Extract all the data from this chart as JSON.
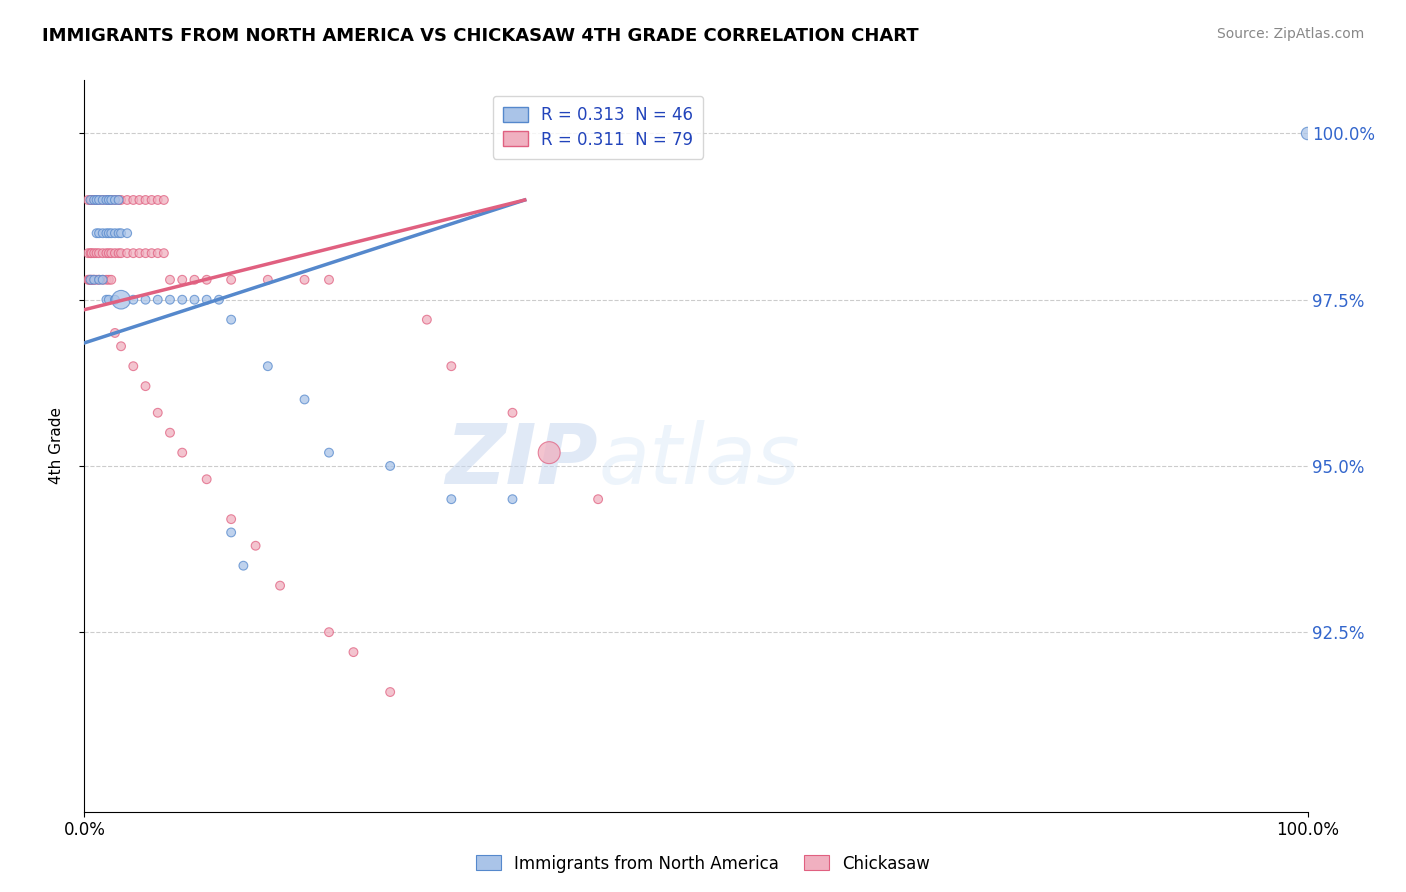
{
  "title": "IMMIGRANTS FROM NORTH AMERICA VS CHICKASAW 4TH GRADE CORRELATION CHART",
  "source_text": "Source: ZipAtlas.com",
  "ylabel": "4th Grade",
  "xmin": 0.0,
  "xmax": 1.0,
  "ymin": 0.898,
  "ymax": 1.008,
  "x_tick_labels": [
    "0.0%",
    "100.0%"
  ],
  "x_tick_positions": [
    0.0,
    1.0
  ],
  "y_tick_labels": [
    "92.5%",
    "95.0%",
    "97.5%",
    "100.0%"
  ],
  "y_tick_values": [
    0.925,
    0.95,
    0.975,
    1.0
  ],
  "watermark_zip": "ZIP",
  "watermark_atlas": "atlas",
  "legend_items": [
    {
      "label": "Immigrants from North America",
      "R": "0.313",
      "N": "46"
    },
    {
      "label": "Chickasaw",
      "R": "0.311",
      "N": "79"
    }
  ],
  "blue_scatter_x": [
    0.005,
    0.008,
    0.01,
    0.012,
    0.015,
    0.018,
    0.02,
    0.022,
    0.025,
    0.028,
    0.01,
    0.012,
    0.015,
    0.018,
    0.02,
    0.022,
    0.025,
    0.028,
    0.03,
    0.035,
    0.005,
    0.008,
    0.012,
    0.015,
    0.018,
    0.02,
    0.025,
    0.03,
    0.04,
    0.05,
    0.06,
    0.07,
    0.08,
    0.09,
    0.1,
    0.11,
    0.12,
    0.15,
    0.18,
    0.2,
    0.25,
    0.3,
    0.35,
    0.12,
    0.13,
    1.0
  ],
  "blue_scatter_y": [
    0.99,
    0.99,
    0.99,
    0.99,
    0.99,
    0.99,
    0.99,
    0.99,
    0.99,
    0.99,
    0.985,
    0.985,
    0.985,
    0.985,
    0.985,
    0.985,
    0.985,
    0.985,
    0.985,
    0.985,
    0.978,
    0.978,
    0.978,
    0.978,
    0.975,
    0.975,
    0.975,
    0.975,
    0.975,
    0.975,
    0.975,
    0.975,
    0.975,
    0.975,
    0.975,
    0.975,
    0.972,
    0.965,
    0.96,
    0.952,
    0.95,
    0.945,
    0.945,
    0.94,
    0.935,
    1.0
  ],
  "blue_scatter_size": [
    40,
    40,
    40,
    40,
    40,
    40,
    40,
    40,
    40,
    40,
    40,
    40,
    40,
    40,
    40,
    40,
    40,
    40,
    40,
    40,
    40,
    40,
    40,
    40,
    40,
    40,
    40,
    180,
    40,
    40,
    40,
    40,
    40,
    40,
    40,
    40,
    40,
    40,
    40,
    40,
    40,
    40,
    40,
    40,
    40,
    80
  ],
  "pink_scatter_x": [
    0.003,
    0.005,
    0.006,
    0.008,
    0.01,
    0.012,
    0.015,
    0.018,
    0.02,
    0.022,
    0.025,
    0.028,
    0.03,
    0.035,
    0.04,
    0.045,
    0.05,
    0.055,
    0.06,
    0.065,
    0.003,
    0.005,
    0.006,
    0.008,
    0.01,
    0.012,
    0.015,
    0.018,
    0.02,
    0.022,
    0.025,
    0.028,
    0.03,
    0.035,
    0.04,
    0.045,
    0.05,
    0.055,
    0.06,
    0.065,
    0.003,
    0.004,
    0.005,
    0.006,
    0.007,
    0.008,
    0.01,
    0.012,
    0.015,
    0.018,
    0.02,
    0.022,
    0.07,
    0.08,
    0.09,
    0.1,
    0.12,
    0.15,
    0.18,
    0.2,
    0.025,
    0.03,
    0.04,
    0.05,
    0.06,
    0.07,
    0.08,
    0.1,
    0.12,
    0.14,
    0.16,
    0.2,
    0.22,
    0.25,
    0.28,
    0.3,
    0.35,
    0.38,
    0.42
  ],
  "pink_scatter_y": [
    0.99,
    0.99,
    0.99,
    0.99,
    0.99,
    0.99,
    0.99,
    0.99,
    0.99,
    0.99,
    0.99,
    0.99,
    0.99,
    0.99,
    0.99,
    0.99,
    0.99,
    0.99,
    0.99,
    0.99,
    0.982,
    0.982,
    0.982,
    0.982,
    0.982,
    0.982,
    0.982,
    0.982,
    0.982,
    0.982,
    0.982,
    0.982,
    0.982,
    0.982,
    0.982,
    0.982,
    0.982,
    0.982,
    0.982,
    0.982,
    0.978,
    0.978,
    0.978,
    0.978,
    0.978,
    0.978,
    0.978,
    0.978,
    0.978,
    0.978,
    0.978,
    0.978,
    0.978,
    0.978,
    0.978,
    0.978,
    0.978,
    0.978,
    0.978,
    0.978,
    0.97,
    0.968,
    0.965,
    0.962,
    0.958,
    0.955,
    0.952,
    0.948,
    0.942,
    0.938,
    0.932,
    0.925,
    0.922,
    0.916,
    0.972,
    0.965,
    0.958,
    0.952,
    0.945
  ],
  "pink_scatter_size": [
    40,
    40,
    40,
    40,
    40,
    40,
    40,
    40,
    40,
    40,
    40,
    40,
    40,
    40,
    40,
    40,
    40,
    40,
    40,
    40,
    40,
    40,
    40,
    40,
    40,
    40,
    40,
    40,
    40,
    40,
    40,
    40,
    40,
    40,
    40,
    40,
    40,
    40,
    40,
    40,
    40,
    40,
    40,
    40,
    40,
    40,
    40,
    40,
    40,
    40,
    40,
    40,
    40,
    40,
    40,
    40,
    40,
    40,
    40,
    40,
    40,
    40,
    40,
    40,
    40,
    40,
    40,
    40,
    40,
    40,
    40,
    40,
    40,
    40,
    40,
    40,
    40,
    250,
    40
  ],
  "blue_line_x0": 0.0,
  "blue_line_x1": 0.36,
  "blue_line_y0": 0.9685,
  "blue_line_y1": 0.99,
  "pink_line_x0": 0.0,
  "pink_line_x1": 0.36,
  "pink_line_y0": 0.9735,
  "pink_line_y1": 0.99,
  "blue_color": "#5588cc",
  "pink_color": "#e06080",
  "blue_fill_color": "#aac4e8",
  "pink_fill_color": "#f0b0c0",
  "background_color": "#ffffff",
  "grid_color": "#cccccc"
}
